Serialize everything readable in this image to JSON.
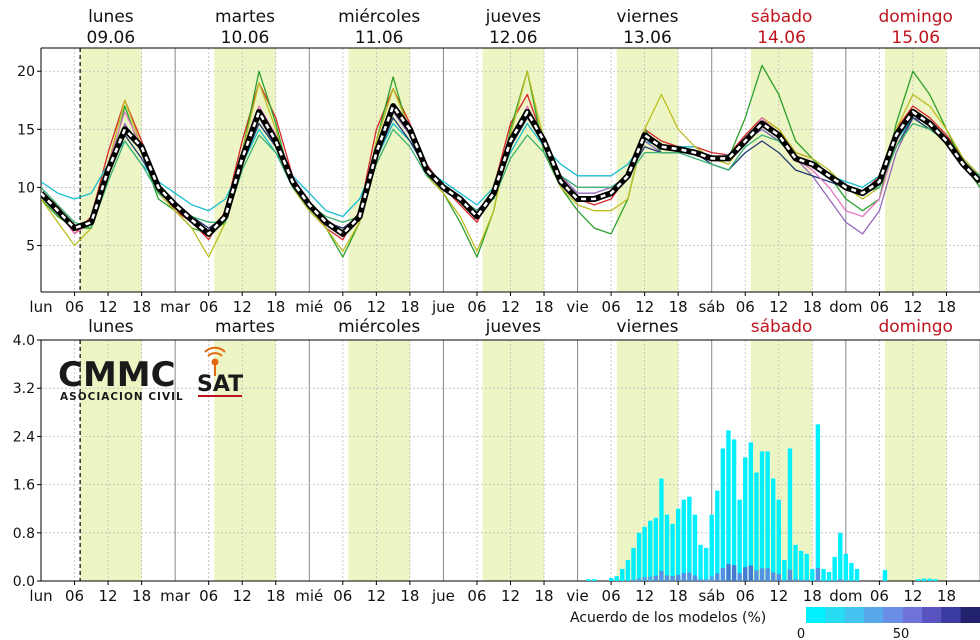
{
  "days": [
    {
      "name": "lunes",
      "date": "09.06",
      "weekend": false
    },
    {
      "name": "martes",
      "date": "10.06",
      "weekend": false
    },
    {
      "name": "miércoles",
      "date": "11.06",
      "weekend": false
    },
    {
      "name": "jueves",
      "date": "12.06",
      "weekend": false
    },
    {
      "name": "viernes",
      "date": "13.06",
      "weekend": false
    },
    {
      "name": "sábado",
      "date": "14.06",
      "weekend": true
    },
    {
      "name": "domingo",
      "date": "15.06",
      "weekend": true
    }
  ],
  "colors": {
    "weekend_text": "#c0141c",
    "daylight_band": "#eef5c4",
    "grid": "#bdbdbd",
    "mean_line": "#000000"
  },
  "day_abbrev": [
    "lun",
    "mar",
    "mié",
    "jue",
    "vie",
    "sáb",
    "dom"
  ],
  "hour_ticks": [
    "06",
    "12",
    "18"
  ],
  "logo": {
    "main": "CMMC",
    "sub": "SAT",
    "caption": "ASOCIACION CIVIL"
  },
  "legend": {
    "title": "Acuerdo de los modelos (%)",
    "tick_labels": [
      "0",
      "50"
    ],
    "colors": [
      "#00f0ff",
      "#28dcf4",
      "#44c4f0",
      "#5aa8ec",
      "#6a8ee6",
      "#6f72d8",
      "#5a54c0",
      "#3a3aa0",
      "#22226e"
    ]
  },
  "chart_data": [
    {
      "type": "line",
      "xlabel": "",
      "ylabel": "",
      "ylim": [
        1,
        22
      ],
      "yticks": [
        5,
        10,
        15,
        20
      ],
      "x_unit": "hour from 2025-06-09 00:00",
      "now_marker_hour": 7,
      "mean_series": {
        "x": [
          0,
          3,
          6,
          9,
          12,
          15,
          18,
          21,
          24,
          27,
          30,
          33,
          36,
          39,
          42,
          45,
          48,
          51,
          54,
          57,
          60,
          63,
          66,
          69,
          72,
          75,
          78,
          81,
          84,
          87,
          90,
          93,
          96,
          99,
          102,
          105,
          108,
          111,
          114,
          117,
          120,
          123,
          126,
          129,
          132,
          135,
          138,
          141,
          144,
          147,
          150,
          153,
          156,
          159,
          162,
          165,
          168
        ],
        "values": [
          9.5,
          8,
          6.5,
          7,
          11.5,
          15,
          13.5,
          10,
          8.5,
          7.2,
          6,
          7.5,
          12.5,
          16.5,
          14,
          10.5,
          8.5,
          7,
          6,
          7.5,
          13,
          17,
          15,
          11.5,
          10,
          9,
          7.5,
          9.5,
          14,
          16.5,
          14,
          10.5,
          9,
          9,
          9.5,
          11,
          14.5,
          13.5,
          13.3,
          13,
          12.5,
          12.5,
          14,
          15.5,
          14.5,
          12.5,
          12,
          11,
          10,
          9.5,
          10.5,
          14.5,
          16.5,
          15.5,
          14,
          12,
          10.5
        ]
      },
      "member_series": [
        {
          "color": "#d62728",
          "values": [
            9.5,
            8.5,
            6,
            7.5,
            13,
            17.5,
            14,
            10,
            8,
            7,
            5.5,
            8,
            14,
            19,
            16,
            11,
            8.5,
            6.5,
            5.5,
            8,
            15,
            18.5,
            15.5,
            12,
            10,
            8.5,
            7,
            10,
            15.5,
            18,
            14,
            11,
            9,
            8.5,
            9,
            11,
            15,
            14,
            13.5,
            13.5,
            13,
            12.8,
            14.5,
            16,
            15,
            13,
            12.5,
            11,
            10,
            9.5,
            11,
            15,
            17,
            16,
            14.5,
            12.5,
            11
          ]
        },
        {
          "color": "#2ca02c",
          "values": [
            9,
            7.5,
            6.5,
            6.5,
            11,
            17,
            13,
            9,
            8,
            6.5,
            6,
            7,
            13,
            20,
            15.5,
            10,
            8,
            6.5,
            4,
            7,
            14,
            19.5,
            14.5,
            11,
            9.5,
            7,
            4,
            8,
            15,
            20,
            13,
            10,
            8,
            6.5,
            6,
            9,
            15,
            13,
            13,
            13,
            12.5,
            12.5,
            16,
            20.5,
            18,
            14,
            12.5,
            11,
            9,
            8,
            9,
            15.5,
            20,
            18,
            15,
            12,
            10
          ]
        },
        {
          "color": "#17becf",
          "values": [
            10.5,
            9.5,
            9,
            9.5,
            12,
            14,
            12,
            10.5,
            9.5,
            8.5,
            8,
            9,
            12,
            15,
            13,
            11,
            9.5,
            8,
            7.5,
            9,
            12.5,
            15.5,
            14,
            11.5,
            10.5,
            9.5,
            8.5,
            10,
            13,
            15.5,
            13.5,
            12,
            11,
            11,
            11,
            12,
            14,
            13.5,
            13.5,
            13.5,
            12.5,
            12.8,
            14,
            15,
            14,
            12.5,
            12,
            11,
            10.5,
            10,
            11,
            14,
            16,
            15,
            14,
            12.5,
            11
          ]
        },
        {
          "color": "#bcbd22",
          "values": [
            9,
            7,
            5,
            6.5,
            12,
            17.5,
            13.5,
            9.5,
            8,
            6.5,
            4,
            7,
            13,
            19,
            15,
            10,
            8,
            6.5,
            4.5,
            7,
            14,
            18.5,
            15,
            11,
            9.5,
            7.5,
            4.5,
            8,
            14.5,
            20,
            14,
            10,
            8.5,
            8,
            8,
            9,
            15,
            18,
            15,
            13.5,
            12.5,
            12,
            14,
            16,
            15,
            13,
            12.5,
            11.5,
            10,
            9,
            10,
            15,
            18,
            17,
            15,
            12.5,
            11
          ]
        },
        {
          "color": "#9467bd",
          "values": [
            9.5,
            8,
            6.5,
            7,
            11,
            15.5,
            13,
            10,
            8.5,
            7.5,
            6.5,
            7.5,
            12,
            16,
            13.5,
            10.5,
            8.5,
            7,
            6.5,
            7.5,
            12.5,
            16.5,
            14.5,
            11.5,
            10,
            9,
            8,
            9.5,
            13.5,
            16,
            14,
            11,
            9.5,
            9.5,
            10,
            11,
            14,
            13,
            13,
            13,
            12.5,
            12.5,
            14,
            15,
            14,
            12.5,
            11,
            9,
            7,
            6,
            8,
            13,
            16,
            15.5,
            14,
            12,
            10.5
          ]
        },
        {
          "color": "#1f3a6e",
          "values": [
            9.5,
            8,
            6.5,
            7,
            11,
            14.5,
            12.5,
            10,
            8.5,
            7.5,
            6.5,
            7.5,
            12,
            15.5,
            13.5,
            10.5,
            8.5,
            7,
            6.5,
            7.5,
            12.5,
            16,
            14,
            11.5,
            10,
            9,
            8,
            9.5,
            13.5,
            16,
            14,
            11,
            10,
            10,
            10,
            11,
            13.5,
            13,
            13,
            13,
            12,
            11.5,
            13,
            14,
            13,
            11.5,
            11,
            10.5,
            10,
            9.5,
            10,
            13.5,
            16,
            15,
            14,
            12,
            11
          ]
        },
        {
          "color": "#e377c2",
          "values": [
            9.5,
            8,
            6,
            7,
            12,
            16.5,
            13.5,
            10,
            8.5,
            7.5,
            6,
            7.5,
            13,
            17,
            14.5,
            11,
            8.5,
            7,
            6,
            7.5,
            13,
            17,
            15,
            11.5,
            10,
            9,
            7.5,
            9.5,
            14,
            17,
            14,
            10.5,
            9,
            9,
            9.5,
            11,
            14.5,
            13.5,
            13.3,
            13,
            12.5,
            12.5,
            14,
            16,
            14.5,
            12.5,
            11.5,
            10,
            8,
            7.5,
            9,
            14,
            16.5,
            15.5,
            14,
            12,
            10.5
          ]
        },
        {
          "color": "#3cb371",
          "values": [
            10,
            8.5,
            7,
            6.5,
            10.5,
            14,
            12,
            9.5,
            8.5,
            7.5,
            7,
            7,
            11.5,
            14.5,
            13,
            10,
            8.5,
            7.5,
            7,
            7.5,
            12,
            15,
            13.5,
            11,
            10,
            9,
            8,
            9,
            12.5,
            14.5,
            13,
            11,
            10,
            10,
            10,
            11,
            13,
            13,
            13,
            12.5,
            12,
            11.5,
            13.5,
            14.5,
            14,
            12.5,
            12,
            11,
            10,
            9.5,
            10,
            13.5,
            15.5,
            15,
            14,
            12,
            11
          ]
        }
      ]
    },
    {
      "type": "bar",
      "xlabel": "",
      "ylabel": "",
      "ylim": [
        0,
        4
      ],
      "yticks": [
        "0.0",
        "0.8",
        "1.6",
        "2.4",
        "3.2",
        "4.0"
      ],
      "x_unit": "hour from 2025-06-09 00:00",
      "now_marker_hour": 7,
      "bars": [
        {
          "x": 98,
          "value": 0.03,
          "agree": 0
        },
        {
          "x": 99,
          "value": 0.03,
          "agree": 0
        },
        {
          "x": 102,
          "value": 0.05,
          "agree": 0
        },
        {
          "x": 103,
          "value": 0.08,
          "agree": 0
        },
        {
          "x": 104,
          "value": 0.2,
          "agree": 5
        },
        {
          "x": 105,
          "value": 0.35,
          "agree": 10
        },
        {
          "x": 106,
          "value": 0.55,
          "agree": 15
        },
        {
          "x": 107,
          "value": 0.8,
          "agree": 20
        },
        {
          "x": 108,
          "value": 0.9,
          "agree": 25
        },
        {
          "x": 109,
          "value": 1.0,
          "agree": 25
        },
        {
          "x": 110,
          "value": 1.05,
          "agree": 30
        },
        {
          "x": 111,
          "value": 1.7,
          "agree": 35
        },
        {
          "x": 112,
          "value": 1.1,
          "agree": 30
        },
        {
          "x": 113,
          "value": 0.95,
          "agree": 30
        },
        {
          "x": 114,
          "value": 1.2,
          "agree": 30
        },
        {
          "x": 115,
          "value": 1.35,
          "agree": 35
        },
        {
          "x": 116,
          "value": 1.4,
          "agree": 35
        },
        {
          "x": 117,
          "value": 1.1,
          "agree": 30
        },
        {
          "x": 118,
          "value": 0.6,
          "agree": 20
        },
        {
          "x": 119,
          "value": 0.55,
          "agree": 20
        },
        {
          "x": 120,
          "value": 1.1,
          "agree": 25
        },
        {
          "x": 121,
          "value": 1.5,
          "agree": 30
        },
        {
          "x": 122,
          "value": 2.2,
          "agree": 35
        },
        {
          "x": 123,
          "value": 2.5,
          "agree": 40
        },
        {
          "x": 124,
          "value": 2.35,
          "agree": 40
        },
        {
          "x": 125,
          "value": 1.35,
          "agree": 35
        },
        {
          "x": 126,
          "value": 2.05,
          "agree": 40
        },
        {
          "x": 127,
          "value": 2.3,
          "agree": 40
        },
        {
          "x": 128,
          "value": 1.8,
          "agree": 35
        },
        {
          "x": 129,
          "value": 2.15,
          "agree": 35
        },
        {
          "x": 130,
          "value": 2.15,
          "agree": 35
        },
        {
          "x": 131,
          "value": 1.7,
          "agree": 30
        },
        {
          "x": 132,
          "value": 1.35,
          "agree": 30
        },
        {
          "x": 133,
          "value": 0.35,
          "agree": 15
        },
        {
          "x": 134,
          "value": 2.2,
          "agree": 30
        },
        {
          "x": 135,
          "value": 0.6,
          "agree": 20
        },
        {
          "x": 136,
          "value": 0.5,
          "agree": 15
        },
        {
          "x": 137,
          "value": 0.45,
          "agree": 15
        },
        {
          "x": 138,
          "value": 0.2,
          "agree": 10
        },
        {
          "x": 139,
          "value": 2.6,
          "agree": 30
        },
        {
          "x": 140,
          "value": 0.2,
          "agree": 10
        },
        {
          "x": 141,
          "value": 0.15,
          "agree": 5
        },
        {
          "x": 142,
          "value": 0.4,
          "agree": 10
        },
        {
          "x": 143,
          "value": 0.8,
          "agree": 15
        },
        {
          "x": 144,
          "value": 0.45,
          "agree": 10
        },
        {
          "x": 145,
          "value": 0.3,
          "agree": 5
        },
        {
          "x": 146,
          "value": 0.2,
          "agree": 5
        },
        {
          "x": 151,
          "value": 0.18,
          "agree": 5
        },
        {
          "x": 157,
          "value": 0.03,
          "agree": 0
        },
        {
          "x": 158,
          "value": 0.04,
          "agree": 0
        },
        {
          "x": 159,
          "value": 0.04,
          "agree": 0
        },
        {
          "x": 160,
          "value": 0.03,
          "agree": 0
        }
      ]
    }
  ]
}
